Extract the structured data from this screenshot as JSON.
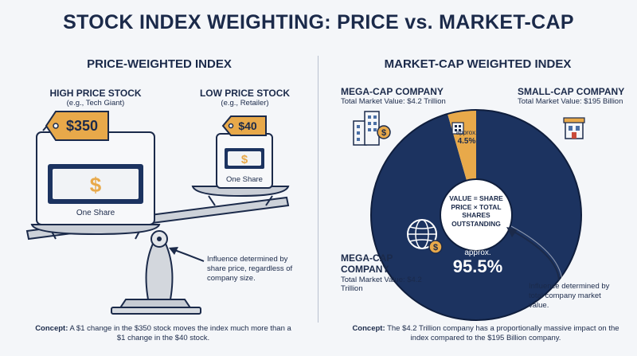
{
  "title": "STOCK INDEX WEIGHTING: PRICE vs. MARKET-CAP",
  "left": {
    "heading": "PRICE-WEIGHTED INDEX",
    "high": {
      "label": "HIGH PRICE STOCK",
      "sub": "(e.g., Tech Giant)",
      "price_tag": "$350",
      "share": "One Share"
    },
    "low": {
      "label": "LOW PRICE STOCK",
      "sub": "(e.g., Retailer)",
      "price_tag": "$40",
      "share": "One Share"
    },
    "influence_note": "Influence determined by share price, regardless of company size.",
    "concept_label": "Concept:",
    "concept_text": "A $1 change in the $350 stock moves the index much more than a $1 change in the $40 stock."
  },
  "right": {
    "heading": "MARKET-CAP WEIGHTED INDEX",
    "mega_top": {
      "label": "MEGA-CAP COMPANY",
      "sub": "Total Market Value: $4.2 Trillion"
    },
    "small_top": {
      "label": "SMALL-CAP COMPANY",
      "sub": "Total Market Value: $195 Billion"
    },
    "center_formula": "VALUE = SHARE PRICE × TOTAL SHARES OUTSTANDING",
    "small_slice_label": "approx.",
    "small_slice_value": "4.5%",
    "large_slice_label": "approx.",
    "large_slice_value": "95.5%",
    "mega_bottom": {
      "label": "MEGA-CAP COMPANY",
      "sub": "Total Market Value: $4.2 Trillion"
    },
    "influence_note": "Influence determined by total company market value.",
    "concept_label": "Concept:",
    "concept_text": "The $4.2 Trillion company has a proportionally massive impact on the index compared to the $195 Billion company."
  },
  "chart_data": {
    "type": "pie",
    "categories": [
      "MEGA-CAP COMPANY",
      "SMALL-CAP COMPANY"
    ],
    "values": [
      95.5,
      4.5
    ]
  },
  "colors": {
    "navy": "#1c3360",
    "gold": "#e8a94a",
    "ink": "#1b2a4a",
    "bg": "#f4f6f9"
  }
}
